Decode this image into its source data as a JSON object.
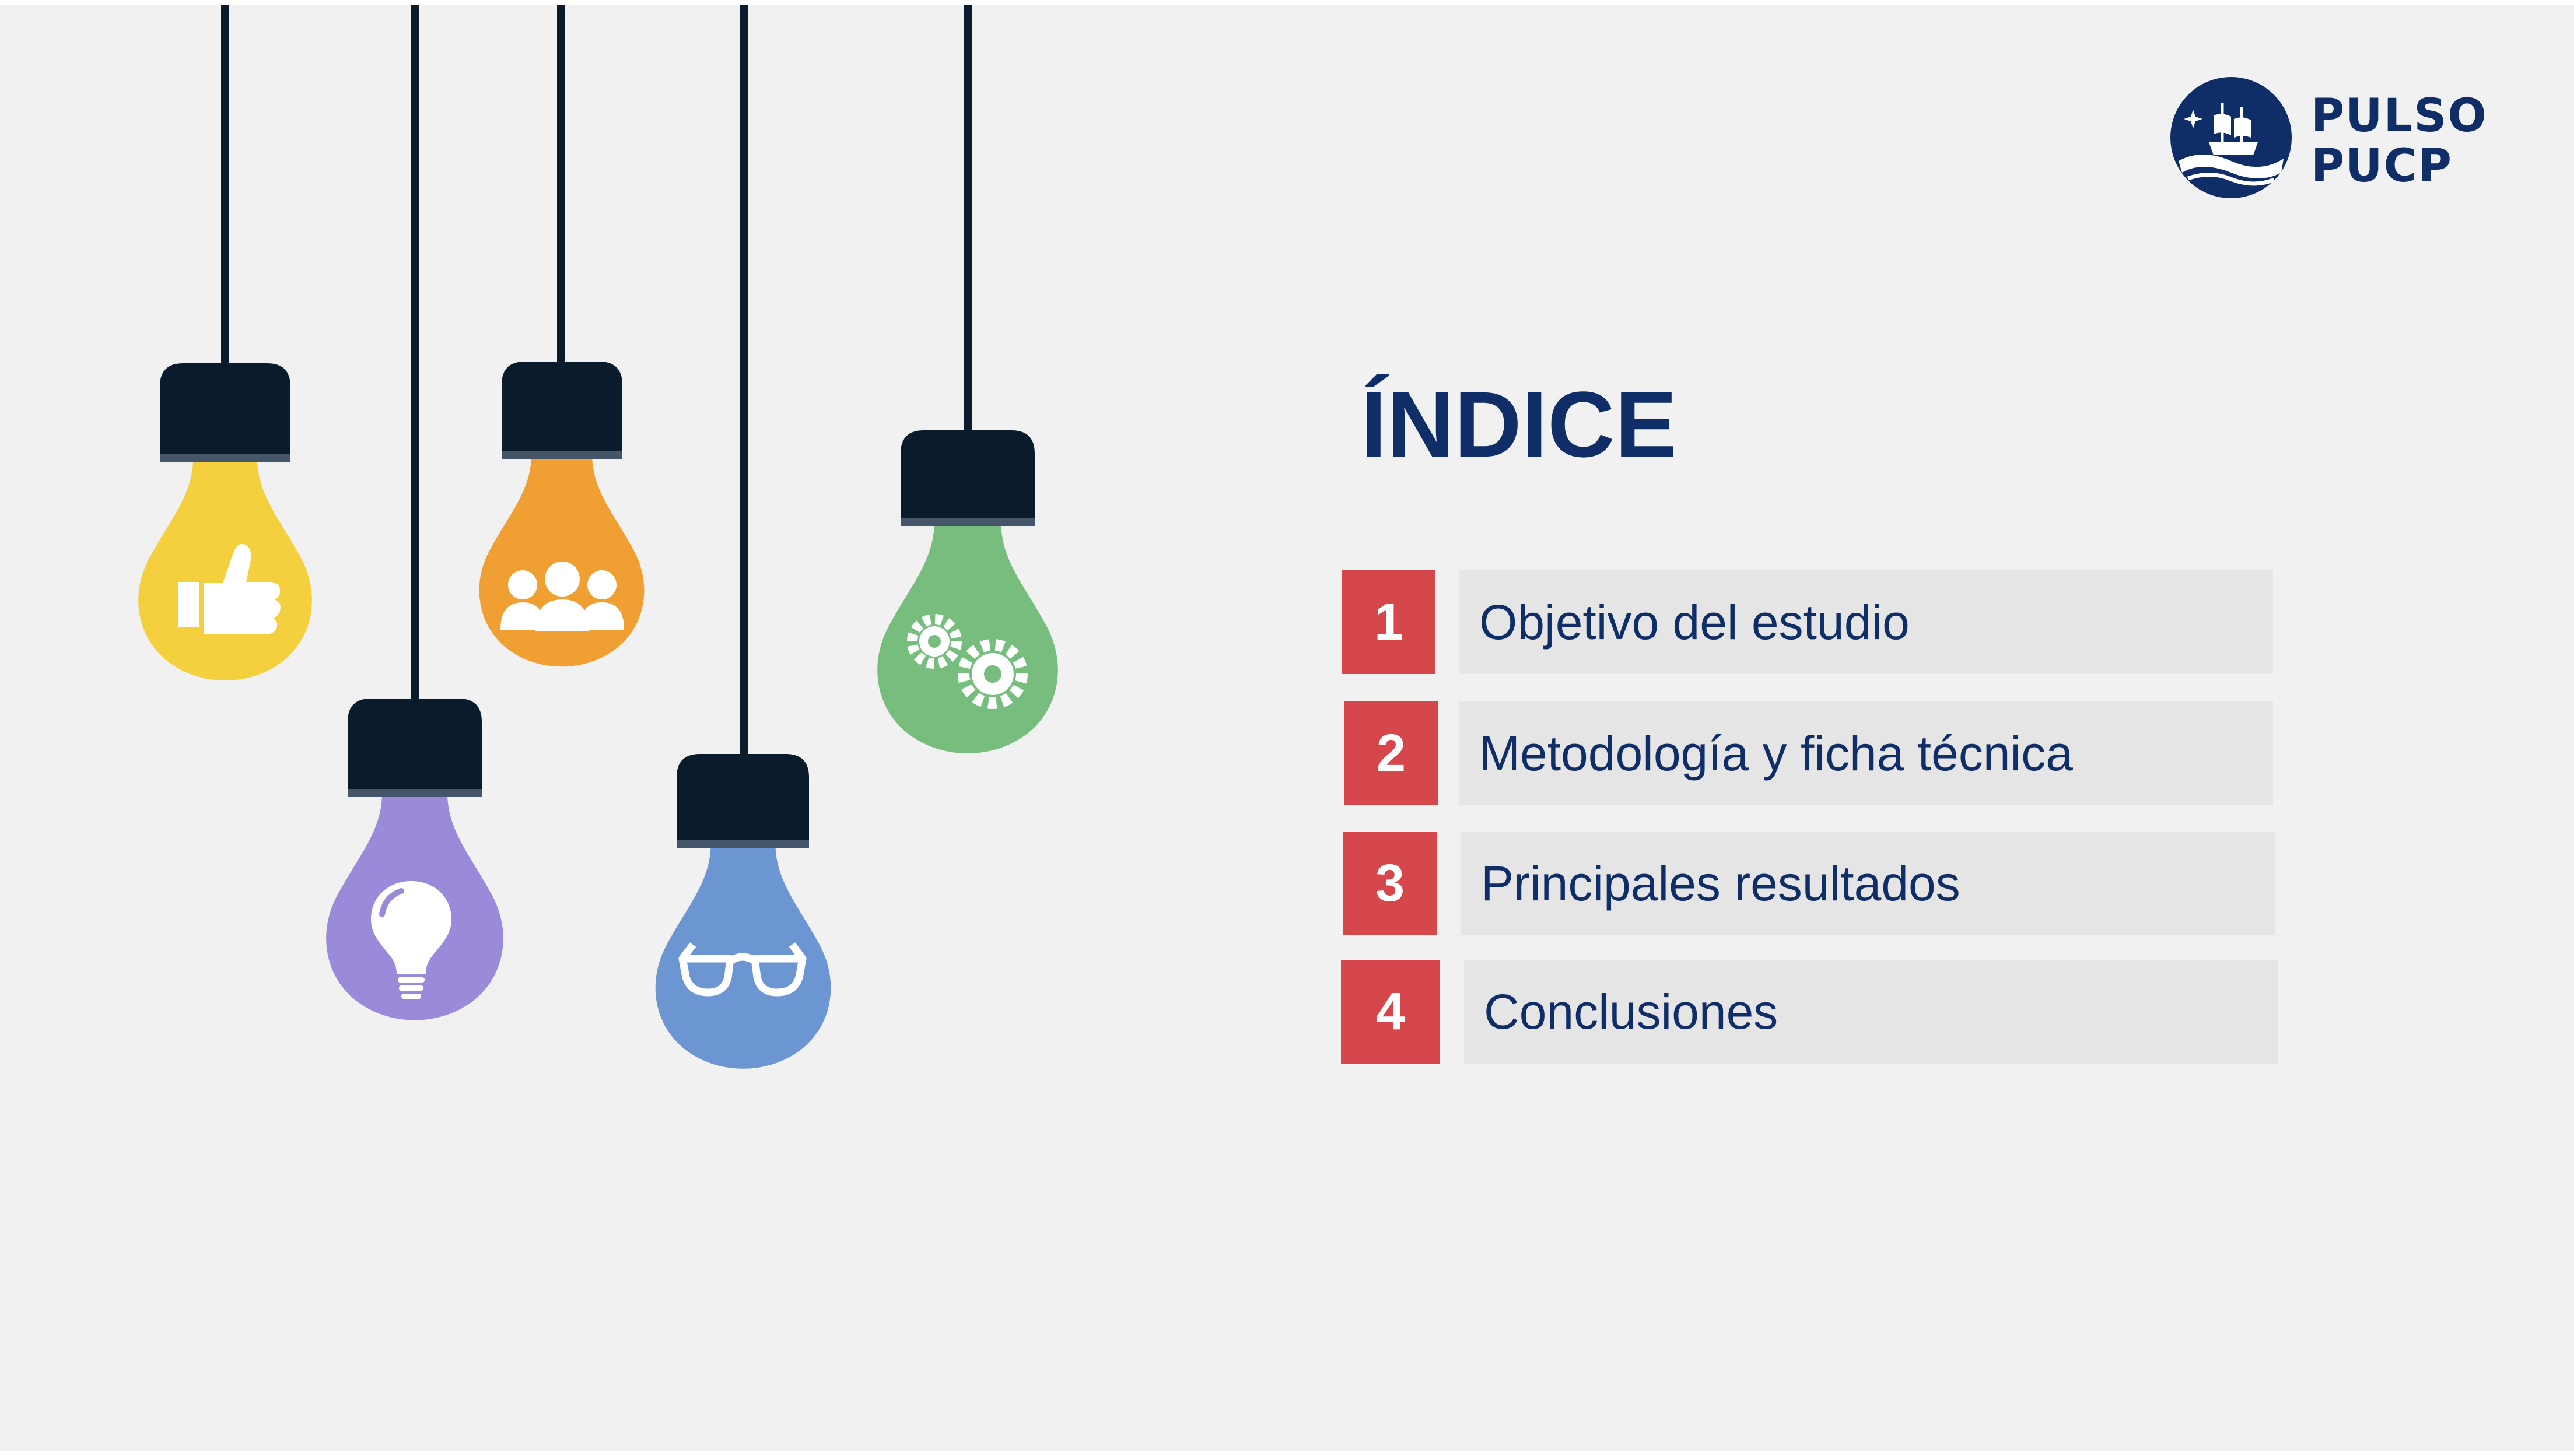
{
  "title": "ÍNDICE",
  "logo": {
    "line1": "PULSO",
    "line2": "PUCP",
    "icon": "ship-emblem-icon"
  },
  "colors": {
    "navy": "#0f2d66",
    "accent_red": "#d6474c",
    "background": "#f1f1f1",
    "item_bar": "#e5e5e5"
  },
  "items": [
    {
      "number": "1",
      "label": "Objetivo del estudio"
    },
    {
      "number": "2",
      "label": "Metodología y ficha técnica"
    },
    {
      "number": "3",
      "label": "Principales resultados"
    },
    {
      "number": "4",
      "label": "Conclusiones"
    }
  ],
  "bulbs": [
    {
      "color": "#f4d03f",
      "icon": "thumbs-up-icon"
    },
    {
      "color": "#f0a032",
      "icon": "people-group-icon"
    },
    {
      "color": "#76bd7e",
      "icon": "gears-icon"
    },
    {
      "color": "#9b8ad9",
      "icon": "lightbulb-icon"
    },
    {
      "color": "#6b96d2",
      "icon": "glasses-icon"
    }
  ]
}
